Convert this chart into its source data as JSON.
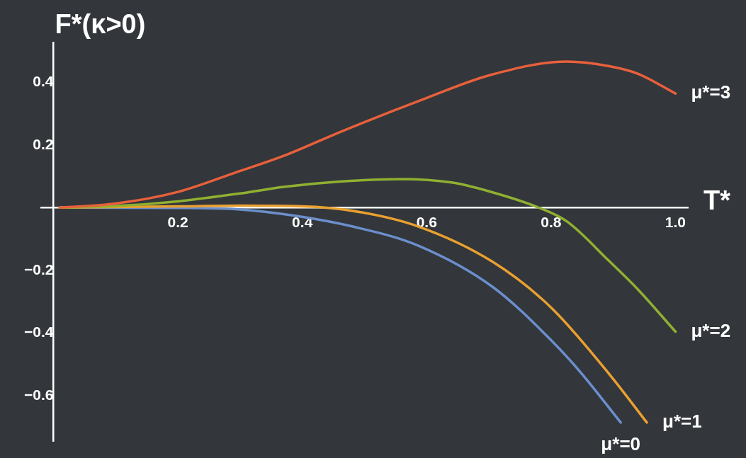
{
  "chart_data": {
    "type": "line",
    "xlabel": "T*",
    "ylabel": "F*(κ>0)",
    "xlim": [
      -0.02,
      1.02
    ],
    "ylim": [
      -0.745,
      0.527
    ],
    "xticks": [
      0.2,
      0.4,
      0.6,
      0.8,
      {
        "value": 1.0,
        "label": "1.0"
      }
    ],
    "yticks": [
      0.4,
      0.2,
      {
        "value": -0.2,
        "label": "−0.2"
      },
      {
        "value": -0.4,
        "label": "−0.4"
      },
      {
        "value": -0.6,
        "label": "−0.6"
      }
    ],
    "grid": false,
    "legend": false,
    "marker": "none",
    "line_style": "solid",
    "series": [
      {
        "name": "μ*=3",
        "color": "#e8603c",
        "x": [
          0.01,
          0.1,
          0.2,
          0.29,
          0.37,
          0.464,
          0.6,
          0.702,
          0.825,
          0.892,
          0.94,
          1.0
        ],
        "values": [
          0,
          0.013,
          0.05,
          0.11,
          0.165,
          0.244,
          0.35,
          0.423,
          0.466,
          0.452,
          0.427,
          0.364
        ]
      },
      {
        "name": "μ*=2",
        "color": "#8fb031",
        "x": [
          0.01,
          0.1,
          0.2,
          0.3,
          0.37,
          0.46,
          0.56,
          0.64,
          0.7,
          0.78,
          0.826,
          0.892,
          0.94,
          1.0
        ],
        "values": [
          0,
          0.005,
          0.02,
          0.045,
          0.066,
          0.083,
          0.091,
          0.08,
          0.052,
          0,
          -0.045,
          -0.168,
          -0.262,
          -0.396
        ]
      },
      {
        "name": "μ*=1",
        "color": "#e8a030",
        "x": [
          0.01,
          0.2,
          0.3,
          0.4,
          0.48,
          0.586,
          0.706,
          0.8,
          0.895,
          0.954
        ],
        "values": [
          0,
          0.004,
          0.006,
          0.004,
          -0.01,
          -0.06,
          -0.173,
          -0.319,
          -0.535,
          -0.686
        ]
      },
      {
        "name": "μ*=0",
        "color": "#6b8fcc",
        "x": [
          0.01,
          0.2,
          0.3,
          0.392,
          0.48,
          0.586,
          0.706,
          0.8,
          0.848,
          0.912
        ],
        "values": [
          0,
          -0.001,
          -0.006,
          -0.027,
          -0.06,
          -0.121,
          -0.253,
          -0.423,
          -0.527,
          -0.686
        ]
      }
    ]
  }
}
